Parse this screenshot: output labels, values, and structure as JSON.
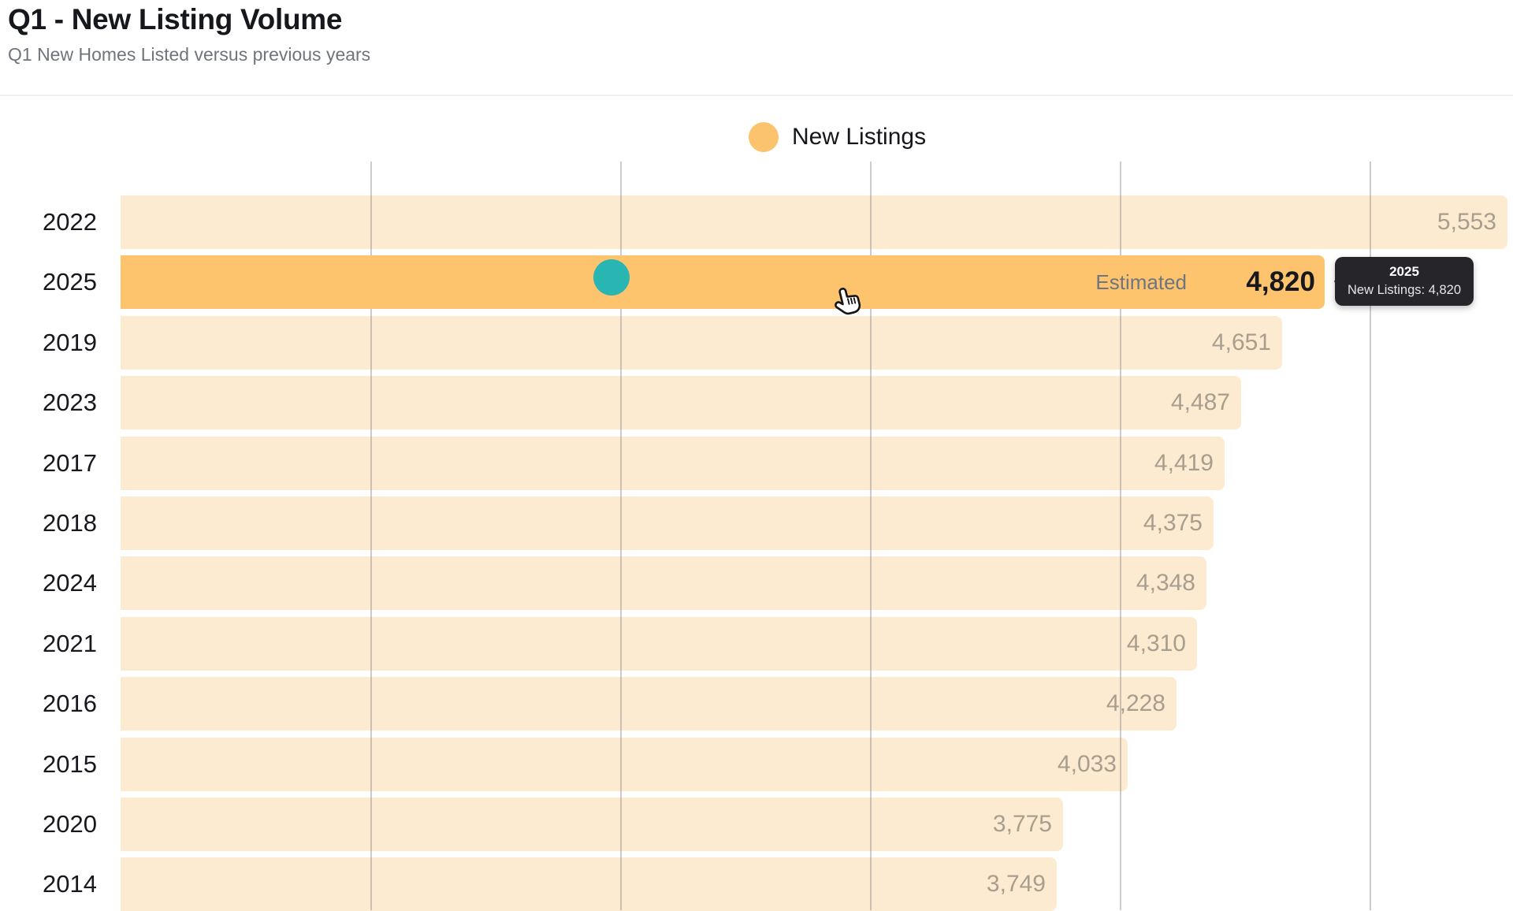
{
  "header": {
    "title": "Q1 - New Listing Volume",
    "subtitle": "Q1 New Homes Listed versus previous years"
  },
  "legend": {
    "label": "New Listings"
  },
  "colors": {
    "bar_highlight": "#FDC46D",
    "bar_light": "#FDEBD1",
    "legend_dot": "#FBC36E",
    "value_label": "#A89E8E",
    "highlight_value": "#17181C",
    "teal_marker": "#29B5B2",
    "tooltip_bg": "#26262A"
  },
  "chart_data": {
    "type": "bar",
    "orientation": "horizontal",
    "title": "Q1 - New Listing Volume",
    "series_name": "New Listings",
    "categories": [
      "2022",
      "2025",
      "2019",
      "2023",
      "2017",
      "2018",
      "2024",
      "2021",
      "2016",
      "2015",
      "2020",
      "2014"
    ],
    "values": [
      5553,
      4820,
      4651,
      4487,
      4419,
      4375,
      4348,
      4310,
      4228,
      4033,
      3775,
      3749
    ],
    "value_labels": [
      "5,553",
      "4,820",
      "4,651",
      "4,487",
      "4,419",
      "4,375",
      "4,348",
      "4,310",
      "4,228",
      "4,033",
      "3,775",
      "3,749"
    ],
    "highlighted_category": "2025",
    "highlight_note": "Estimated",
    "axis": {
      "min": 0,
      "gridline_interval": 1000,
      "gridlines": [
        1000,
        2000,
        3000,
        4000,
        5000
      ]
    },
    "grid": "vertical-only",
    "legend_position": "top",
    "sort": "descending-by-value"
  },
  "tooltip": {
    "title": "2025",
    "text": "New Listings: 4,820"
  }
}
